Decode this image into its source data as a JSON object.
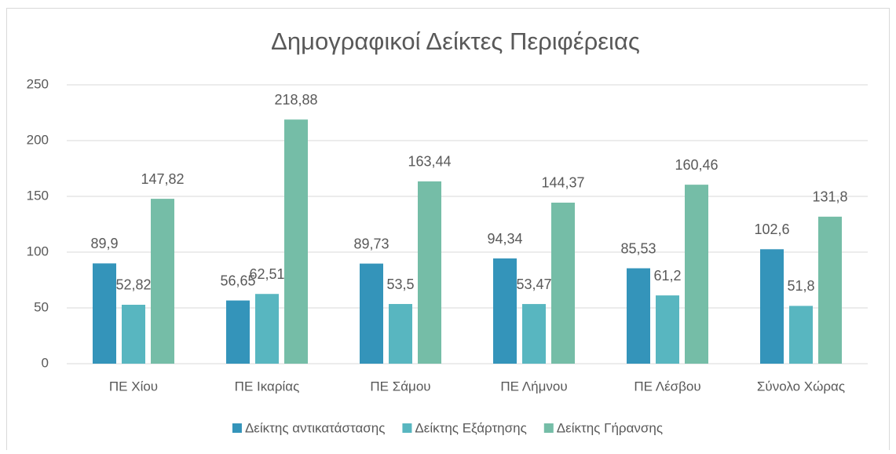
{
  "chart_data": {
    "type": "bar",
    "title": "Δημογραφικοί Δείκτες Περιφέρειας",
    "categories": [
      "ΠΕ Χίου",
      "ΠΕ Ικαρίας",
      "ΠΕ Σάμου",
      "ΠΕ Λήμνου",
      "ΠΕ Λέσβου",
      "Σύνολο Χώρας"
    ],
    "series": [
      {
        "name": "Δείκτης αντικατάστασης",
        "color": "#3494ba",
        "values": [
          89.9,
          56.65,
          89.73,
          94.34,
          85.53,
          102.6
        ],
        "value_labels": [
          "89,9",
          "56,65",
          "89,73",
          "94,34",
          "85,53",
          "102,6"
        ]
      },
      {
        "name": "Δείκτης Εξάρτησης",
        "color": "#58b6c0",
        "values": [
          52.82,
          62.51,
          53.5,
          53.47,
          61.2,
          51.8
        ],
        "value_labels": [
          "52,82",
          "62,51",
          "53,5",
          "53,47",
          "61,2",
          "51,8"
        ]
      },
      {
        "name": "Δείκτης Γήρανσης",
        "color": "#75bda7",
        "values": [
          147.82,
          218.88,
          163.44,
          144.37,
          160.46,
          131.8
        ],
        "value_labels": [
          "147,82",
          "218,88",
          "163,44",
          "144,37",
          "160,46",
          "131,8"
        ]
      }
    ],
    "ylim": [
      0,
      250
    ],
    "yticks": [
      0,
      50,
      100,
      150,
      200,
      250
    ],
    "grid": true,
    "legend": "bottom"
  }
}
